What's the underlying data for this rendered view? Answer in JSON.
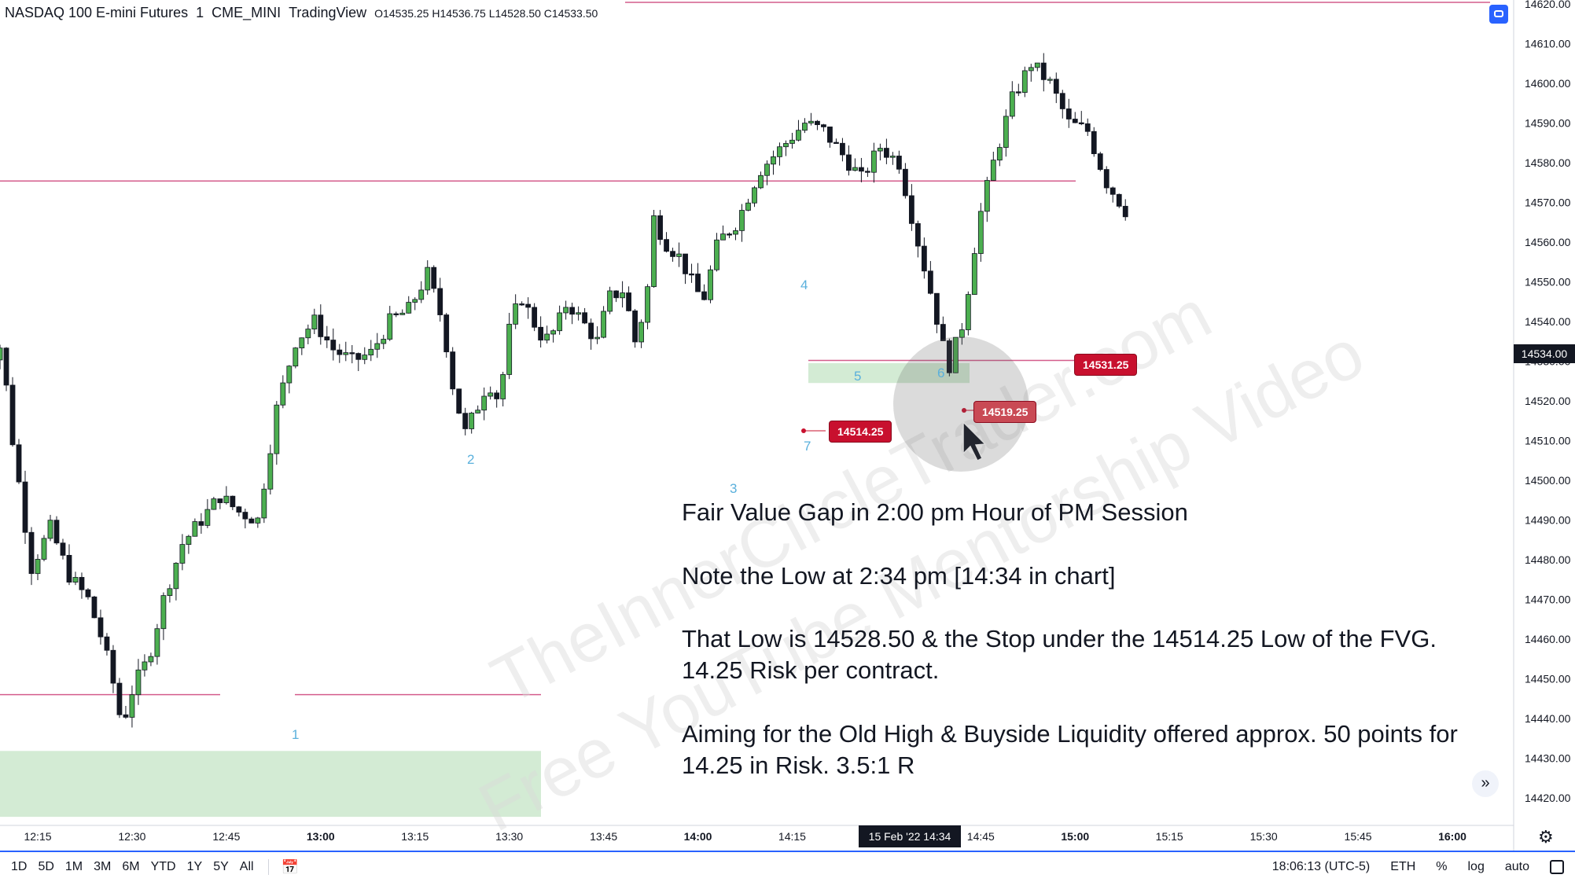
{
  "header": {
    "symbol": "NASDAQ 100 E-mini Futures",
    "interval": "1",
    "exchange": "CME_MINI",
    "source": "TradingView",
    "ohlc": "O14535.25  H14536.75  L14528.50  C14533.50"
  },
  "notes": {
    "line1": "Fair Value Gap in 2:00 pm Hour of PM Session",
    "line2": "Note the Low at 2:34 pm [14:34 in chart]",
    "line3a": "That Low is 14528.50 & the Stop under the 14514.25 Low of the FVG.",
    "line3b": "14.25 Risk per contract.",
    "line4a": "Aiming for the Old High & Buyside Liquidity offered approx. 50 points for",
    "line4b": "14.25 in Risk.  3.5:1 R"
  },
  "tags": {
    "t1": "14531.25",
    "t2": "14519.25",
    "t3": "14514.25"
  },
  "current_price": "14534.00",
  "wave_labels": [
    "1",
    "2",
    "3",
    "4",
    "5",
    "6",
    "7"
  ],
  "cursor_label": "15 Feb '22   14:34",
  "timeframes": [
    "1D",
    "5D",
    "1M",
    "3M",
    "6M",
    "YTD",
    "1Y",
    "5Y",
    "All"
  ],
  "status": {
    "clock": "18:06:13 (UTC-5)",
    "session": "ETH",
    "percent": "%",
    "log": "log",
    "auto": "auto"
  },
  "watermark": {
    "line1": "TheInnerCircleTrader.com",
    "line2": "Free YouTube Mentorship Video"
  },
  "colors": {
    "up": "#26a69a",
    "bull_candle": "#4caf50",
    "bear_candle": "#131722",
    "level_line": "#c2185b",
    "fvg_zone": "#c8e6c9",
    "accent": "#2962ff"
  },
  "chart_data": {
    "type": "candlestick",
    "y_ticks": [
      "14620.00",
      "14610.00",
      "14600.00",
      "14590.00",
      "14580.00",
      "14570.00",
      "14560.00",
      "14550.00",
      "14540.00",
      "14530.00",
      "14520.00",
      "14510.00",
      "14500.00",
      "14490.00",
      "14480.00",
      "14470.00",
      "14460.00",
      "14450.00",
      "14440.00",
      "14430.00",
      "14420.00"
    ],
    "ylim": [
      14417,
      14621
    ],
    "x_ticks": [
      {
        "label": "12:15",
        "bold": false
      },
      {
        "label": "12:30",
        "bold": false
      },
      {
        "label": "12:45",
        "bold": false
      },
      {
        "label": "13:00",
        "bold": true
      },
      {
        "label": "13:15",
        "bold": false
      },
      {
        "label": "13:30",
        "bold": false
      },
      {
        "label": "13:45",
        "bold": false
      },
      {
        "label": "14:00",
        "bold": true
      },
      {
        "label": "14:15",
        "bold": false
      },
      {
        "label": "14:45",
        "bold": false
      },
      {
        "label": "15:00",
        "bold": true
      },
      {
        "label": "15:15",
        "bold": false
      },
      {
        "label": "15:30",
        "bold": false
      },
      {
        "label": "15:45",
        "bold": false
      },
      {
        "label": "16:00",
        "bold": true
      }
    ],
    "levels": [
      14620.4,
      14575.4,
      14446,
      14530.2
    ],
    "fvg_zones": [
      [
        14431.8,
        14415.2
      ],
      [
        14529.5,
        14524.5
      ]
    ],
    "close_path": [
      [
        12.1,
        14527
      ],
      [
        12.17,
        14534
      ],
      [
        12.2,
        14510
      ],
      [
        12.25,
        14478
      ],
      [
        12.3,
        14488
      ],
      [
        12.35,
        14476
      ],
      [
        12.4,
        14470
      ],
      [
        12.43,
        14462
      ],
      [
        12.46,
        14452
      ],
      [
        12.49,
        14438
      ],
      [
        12.52,
        14448
      ],
      [
        12.56,
        14455
      ],
      [
        12.6,
        14470
      ],
      [
        12.65,
        14484
      ],
      [
        12.7,
        14490
      ],
      [
        12.75,
        14496
      ],
      [
        12.8,
        14492
      ],
      [
        12.85,
        14490
      ],
      [
        12.9,
        14518
      ],
      [
        12.95,
        14535
      ],
      [
        13.0,
        14540
      ],
      [
        13.05,
        14533
      ],
      [
        13.1,
        14530
      ],
      [
        13.15,
        14532
      ],
      [
        13.2,
        14540
      ],
      [
        13.25,
        14543
      ],
      [
        13.3,
        14552
      ],
      [
        13.34,
        14540
      ],
      [
        13.37,
        14522
      ],
      [
        13.4,
        14512
      ],
      [
        13.43,
        14518
      ],
      [
        13.46,
        14525
      ],
      [
        13.49,
        14520
      ],
      [
        13.52,
        14540
      ],
      [
        13.55,
        14546
      ],
      [
        13.58,
        14540
      ],
      [
        13.61,
        14535
      ],
      [
        13.64,
        14538
      ],
      [
        13.67,
        14545
      ],
      [
        13.71,
        14540
      ],
      [
        13.75,
        14535
      ],
      [
        13.78,
        14546
      ],
      [
        13.82,
        14548
      ],
      [
        13.85,
        14535
      ],
      [
        13.88,
        14545
      ],
      [
        13.9,
        14566
      ],
      [
        13.93,
        14560
      ],
      [
        13.97,
        14556
      ],
      [
        14.0,
        14550
      ],
      [
        14.03,
        14545
      ],
      [
        14.07,
        14560
      ],
      [
        14.12,
        14565
      ],
      [
        14.18,
        14578
      ],
      [
        14.25,
        14585
      ],
      [
        14.3,
        14590
      ],
      [
        14.35,
        14588
      ],
      [
        14.4,
        14582
      ],
      [
        14.45,
        14576
      ],
      [
        14.5,
        14584
      ],
      [
        14.55,
        14580
      ],
      [
        14.6,
        14560
      ],
      [
        14.64,
        14545
      ],
      [
        14.68,
        14528
      ],
      [
        14.72,
        14540
      ],
      [
        14.76,
        14565
      ],
      [
        14.8,
        14580
      ],
      [
        14.85,
        14596
      ],
      [
        14.9,
        14605
      ],
      [
        14.95,
        14600
      ],
      [
        15.0,
        14590
      ],
      [
        15.05,
        14588
      ],
      [
        15.1,
        14575
      ],
      [
        15.15,
        14568
      ]
    ]
  }
}
